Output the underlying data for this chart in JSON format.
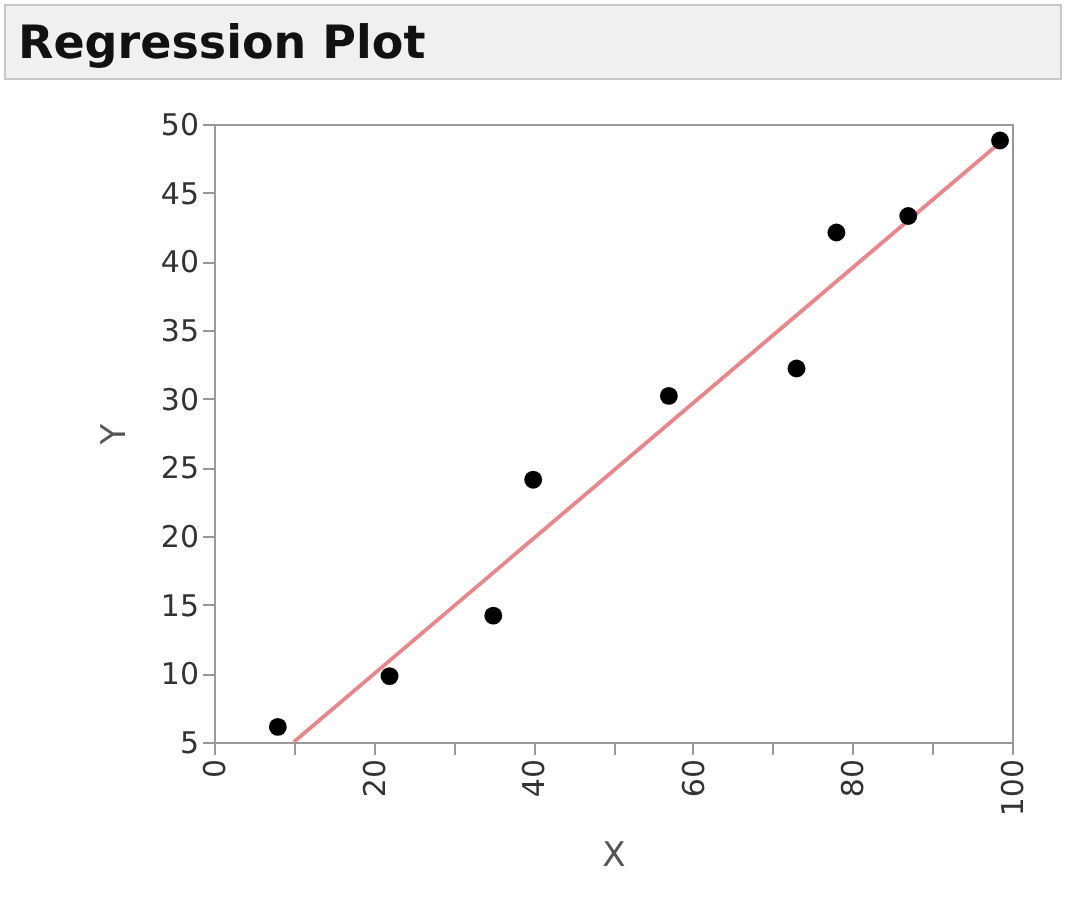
{
  "chart_data": {
    "type": "scatter",
    "title": "Regression Plot",
    "xlabel": "X",
    "ylabel": "Y",
    "xlim": [
      0,
      100
    ],
    "xticks": [
      0,
      {
        "value": 10,
        "label": null
      },
      20,
      {
        "value": 30,
        "label": null
      },
      40,
      {
        "value": 50,
        "label": null
      },
      60,
      {
        "value": 70,
        "label": null
      },
      80,
      {
        "value": 90,
        "label": null
      },
      100
    ],
    "ylim": [
      5,
      50
    ],
    "yticks": [
      5,
      10,
      15,
      20,
      25,
      30,
      35,
      40,
      45,
      50
    ],
    "grid": false,
    "series": [
      {
        "type": "scatter",
        "color": "#000000",
        "x": [
          8,
          22,
          35,
          40,
          57,
          73,
          78,
          87,
          98.5
        ],
        "values": [
          6.1,
          9.8,
          14.2,
          24.1,
          30.2,
          32.2,
          42.1,
          43.3,
          48.8
        ]
      },
      {
        "type": "line",
        "color": "#e8868c",
        "x": [
          10,
          98
        ],
        "values": [
          5,
          48.4
        ]
      }
    ]
  }
}
